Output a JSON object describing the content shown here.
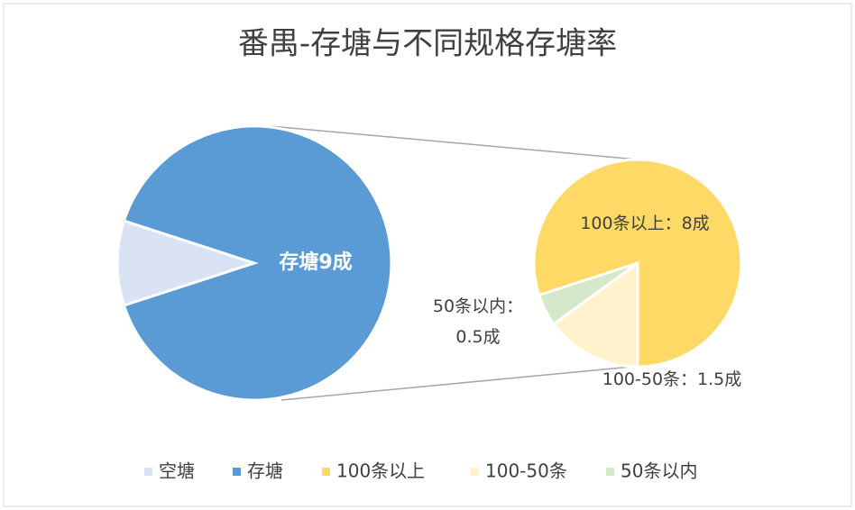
{
  "chart_data": {
    "type": "pie-of-pie",
    "title": "番禺-存塘与不同规格存塘率",
    "primary": {
      "categories": [
        "空塘",
        "存塘"
      ],
      "values": [
        1,
        9
      ],
      "colors": [
        "#dae3f3",
        "#5b9bd5"
      ],
      "value_labels": [
        null,
        "存塘9成"
      ]
    },
    "secondary": {
      "categories": [
        "100条以上",
        "100-50条",
        "50条以内"
      ],
      "values": [
        8,
        1.5,
        0.5
      ],
      "colors": [
        "#ffd966",
        "#fff2cc",
        "#d5e8c9"
      ],
      "value_labels": [
        "100条以上：8成",
        "100-50条：1.5成",
        "50条以内：\n0.5成"
      ]
    }
  }
}
